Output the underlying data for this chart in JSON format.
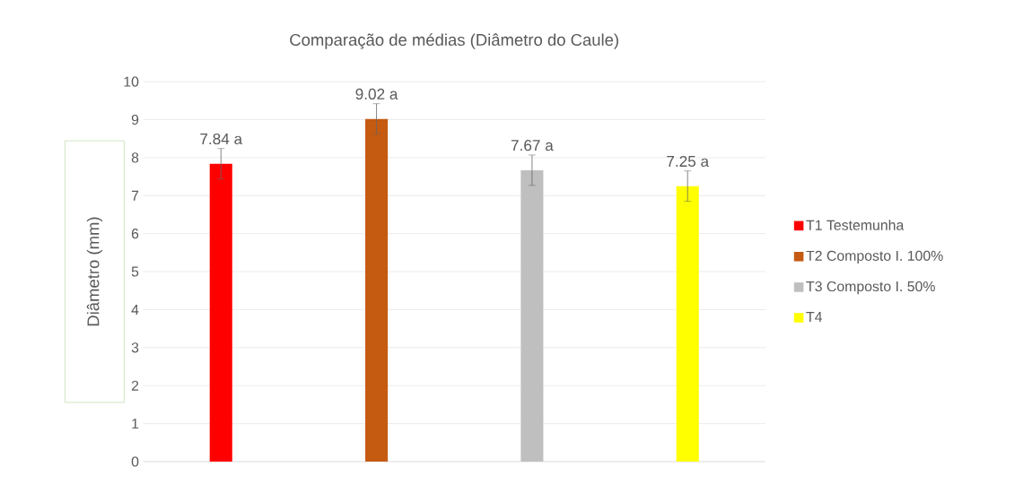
{
  "chart_data": {
    "type": "bar",
    "title": "Comparação de médias (Diâmetro do Caule)",
    "ylabel": "Diâmetro (mm)",
    "categories": [
      null,
      null,
      null,
      null
    ],
    "series": [
      {
        "name": "T1 Testemunha",
        "color": "#ff0000",
        "values": [
          7.84,
          null,
          null,
          null
        ],
        "errors": [
          0.4,
          null,
          null,
          null
        ],
        "value_labels": [
          "7.84 a",
          null,
          null,
          null
        ]
      },
      {
        "name": "T2 Composto I. 100%",
        "color": "#c55a11",
        "values": [
          null,
          9.02,
          null,
          null
        ],
        "errors": [
          null,
          0.4,
          null,
          null
        ],
        "value_labels": [
          null,
          "9.02 a",
          null,
          null
        ]
      },
      {
        "name": "T3 Composto I. 50%",
        "color": "#bfbfbf",
        "values": [
          null,
          null,
          7.67,
          null
        ],
        "errors": [
          null,
          null,
          0.4,
          null
        ],
        "value_labels": [
          null,
          null,
          "7.67 a",
          null
        ]
      },
      {
        "name": "T4",
        "color": "#ffff00",
        "values": [
          null,
          null,
          null,
          7.25
        ],
        "errors": [
          null,
          null,
          null,
          0.4
        ],
        "value_labels": [
          null,
          null,
          null,
          "7.25 a"
        ]
      }
    ],
    "ylim": [
      0,
      10
    ],
    "yticks": [
      0,
      1,
      2,
      3,
      4,
      5,
      6,
      7,
      8,
      9,
      10
    ],
    "grid": "y",
    "legend": "right"
  }
}
